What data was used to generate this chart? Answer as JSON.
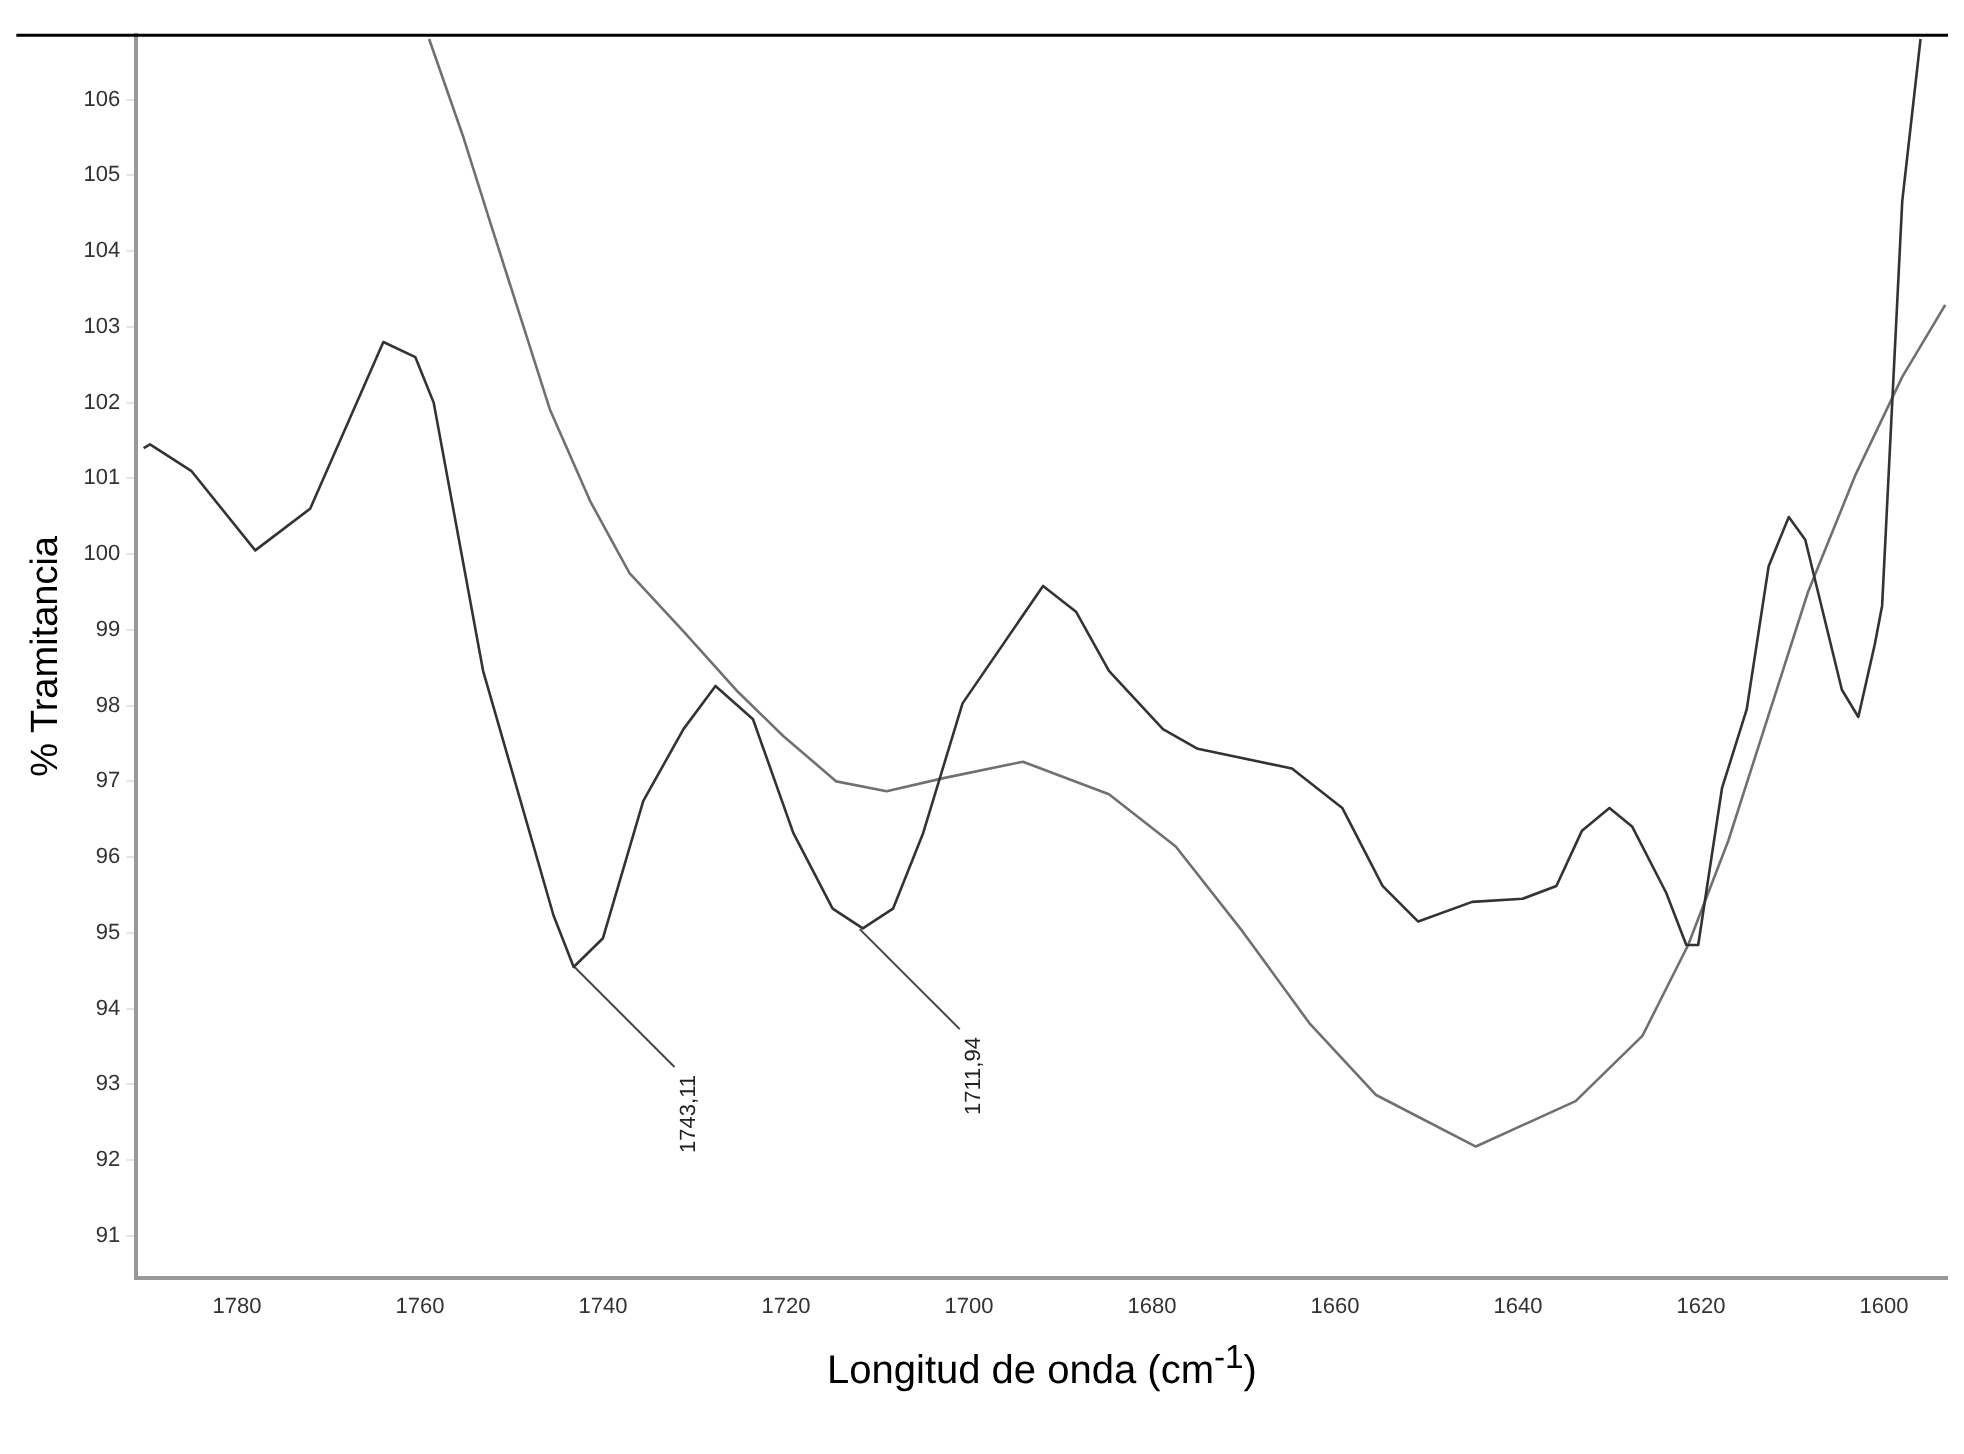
{
  "chart_data": {
    "type": "line",
    "ylabel": "% Tramitancia",
    "xlabel": "Longitud de onda (cm$^{-1}$)",
    "xlim": [
      1791,
      1593
    ],
    "ylim": [
      90.45,
      106.85
    ],
    "xticks": [
      1780,
      1760,
      1740,
      1720,
      1700,
      1680,
      1660,
      1640,
      1620,
      1600
    ],
    "yticks": [
      91,
      92,
      93,
      94,
      95,
      96,
      97,
      98,
      99,
      100,
      101,
      102,
      103,
      104,
      105,
      106
    ],
    "grid": false,
    "legend": false,
    "marker": "none",
    "line_style": "solid",
    "annotations": [
      {
        "text": "1743,11",
        "x": 1743.11,
        "y": 94.55
      },
      {
        "text": "1711,94",
        "x": 1711.94,
        "y": 95.05
      }
    ],
    "series": [
      {
        "color": "#333333",
        "x": [
          1790.2,
          1789.5,
          1785,
          1778,
          1772,
          1764,
          1760.5,
          1758.5,
          1753.1,
          1745.4,
          1743.2,
          1740,
          1735.6,
          1731.2,
          1727.7,
          1723.6,
          1719.2,
          1714.9,
          1711.6,
          1708.3,
          1705,
          1700.7,
          1691.9,
          1688.3,
          1684.7,
          1678.8,
          1675,
          1664.7,
          1659.2,
          1654.8,
          1650.9,
          1645,
          1639.5,
          1635.8,
          1633,
          1630,
          1627.5,
          1623.8,
          1621.6,
          1620.3,
          1617.7,
          1615,
          1612.6,
          1610.4,
          1608.6,
          1604.6,
          1602.8,
          1601,
          1600.2,
          1598,
          1596
        ],
        "values": [
          101.4,
          101.45,
          101.1,
          100.05,
          100.6,
          102.8,
          102.6,
          102,
          98.46,
          95.23,
          94.55,
          94.93,
          96.74,
          97.69,
          98.26,
          97.82,
          96.32,
          95.32,
          95.06,
          95.32,
          96.32,
          98.03,
          99.58,
          99.24,
          98.46,
          97.69,
          97.43,
          97.17,
          96.65,
          95.62,
          95.15,
          95.41,
          95.45,
          95.62,
          96.35,
          96.65,
          96.4,
          95.53,
          94.84,
          94.84,
          96.91,
          97.95,
          99.84,
          100.49,
          100.19,
          98.21,
          97.85,
          98.81,
          99.32,
          104.66,
          106.8
        ]
      },
      {
        "color": "#707070",
        "x": [
          1759,
          1755.3,
          1752.4,
          1745.8,
          1741.4,
          1737.1,
          1731.2,
          1725.4,
          1720.3,
          1714.5,
          1709,
          1702.9,
          1694.1,
          1684.7,
          1677.4,
          1670.1,
          1662.8,
          1655.5,
          1644.6,
          1633.7,
          1626.4,
          1621.4,
          1617,
          1608.3,
          1603.1,
          1598,
          1593.3
        ],
        "values": [
          106.8,
          105.52,
          104.41,
          101.91,
          100.7,
          99.75,
          98.98,
          98.2,
          97.6,
          97.0,
          96.87,
          97.04,
          97.26,
          96.83,
          96.14,
          95.02,
          93.81,
          92.86,
          92.18,
          92.78,
          93.64,
          94.84,
          96.22,
          99.5,
          101.05,
          102.34,
          103.29
        ]
      }
    ]
  }
}
